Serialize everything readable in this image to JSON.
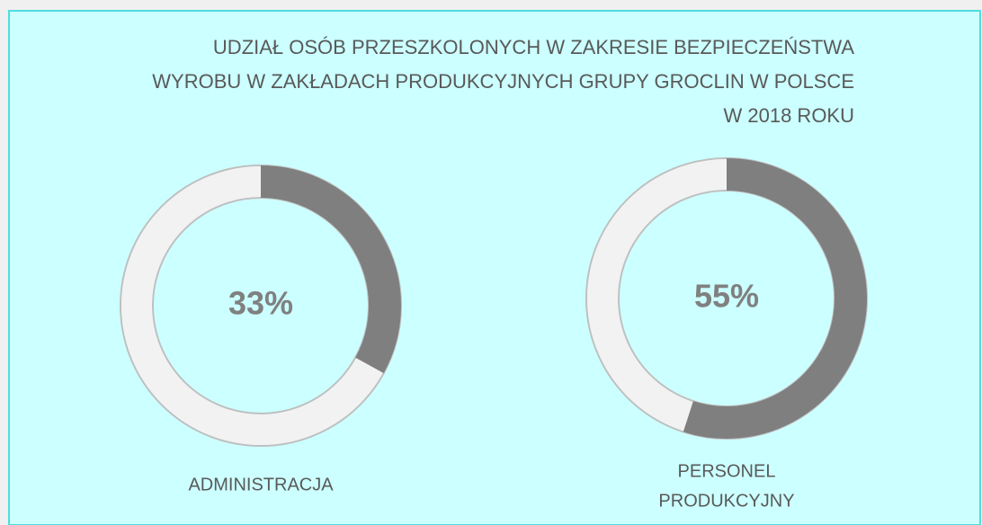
{
  "title": [
    "UDZIAŁ OSÓB PRZESZKOLONYCH W ZAKRESIE BEZPIECZEŃSTWA",
    "WYROBU W ZAKŁADACH PRODUKCYJNYCH GRUPY GROCLIN W POLSCE",
    "W 2018 ROKU"
  ],
  "chart_data": [
    {
      "type": "donut",
      "label": [
        "ADMINISTRACJA"
      ],
      "value": 33,
      "value_label": "33%",
      "color": "#7f7f7f",
      "track_color": "#f2f2f2"
    },
    {
      "type": "donut",
      "label": [
        "PERSONEL",
        "PRODUKCYJNY"
      ],
      "value": 55,
      "value_label": "55%",
      "color": "#7f7f7f",
      "track_color": "#f2f2f2"
    }
  ]
}
